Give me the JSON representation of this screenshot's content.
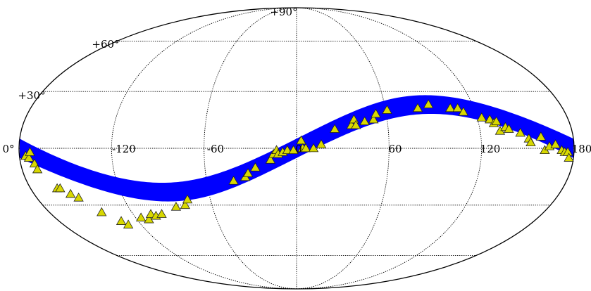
{
  "chart_data": {
    "type": "scatter",
    "projection": "mollweide",
    "title": "",
    "xlabel": "",
    "ylabel": "",
    "x_ticks": [
      "-120",
      "-60",
      "0",
      "60",
      "120",
      "180"
    ],
    "y_ticks": [
      "0°",
      "+30°",
      "+60°",
      "+90°"
    ],
    "lat_gridlines": [
      -60,
      -30,
      0,
      30,
      60
    ],
    "lon_gridlines": [
      -120,
      -60,
      0,
      60,
      120
    ],
    "grid": true,
    "band": {
      "shape": "sinusoid",
      "amplitude_deg": 23,
      "center_lon_deg": 0,
      "width_deg": 10,
      "color": "#0000ff"
    },
    "marker": {
      "shape": "triangle",
      "fill": "#d8d800",
      "stroke": "#202020"
    },
    "points": [
      [
        -176,
        -4
      ],
      [
        -174,
        -5
      ],
      [
        -173,
        -2
      ],
      [
        -171,
        -8
      ],
      [
        -170,
        -11
      ],
      [
        -162,
        -21
      ],
      [
        -160,
        -21
      ],
      [
        -155,
        -24
      ],
      [
        -151,
        -26
      ],
      [
        -142,
        -34
      ],
      [
        -133,
        -39
      ],
      [
        -130,
        -41
      ],
      [
        -116,
        -37
      ],
      [
        -111,
        -38
      ],
      [
        -107,
        -35
      ],
      [
        -104,
        -36
      ],
      [
        -99,
        -35
      ],
      [
        -86,
        -31
      ],
      [
        -79,
        -30
      ],
      [
        -76,
        -27
      ],
      [
        -42,
        -17
      ],
      [
        -34,
        -15
      ],
      [
        -32,
        -13
      ],
      [
        -27,
        -10
      ],
      [
        -17,
        -6
      ],
      [
        -15,
        -3
      ],
      [
        -13,
        -1
      ],
      [
        -12,
        -3
      ],
      [
        -9,
        -2
      ],
      [
        -6,
        -1
      ],
      [
        -2,
        -1
      ],
      [
        3,
        4
      ],
      [
        4,
        0
      ],
      [
        6,
        0
      ],
      [
        11,
        0
      ],
      [
        16,
        2
      ],
      [
        25,
        10
      ],
      [
        36,
        12
      ],
      [
        38,
        15
      ],
      [
        39,
        12
      ],
      [
        45,
        14
      ],
      [
        51,
        15
      ],
      [
        53,
        18
      ],
      [
        61,
        20
      ],
      [
        82,
        21
      ],
      [
        90,
        23
      ],
      [
        104,
        21
      ],
      [
        109,
        21
      ],
      [
        112,
        19
      ],
      [
        123,
        16
      ],
      [
        128,
        15
      ],
      [
        130,
        13
      ],
      [
        132,
        14
      ],
      [
        133,
        9
      ],
      [
        137,
        11
      ],
      [
        139,
        10
      ],
      [
        146,
        8
      ],
      [
        151,
        5
      ],
      [
        152,
        3
      ],
      [
        159,
        6
      ],
      [
        161,
        -1
      ],
      [
        164,
        1
      ],
      [
        168,
        2
      ],
      [
        172,
        -1
      ],
      [
        174,
        -2
      ],
      [
        176,
        -2
      ],
      [
        177,
        -5
      ]
    ]
  }
}
